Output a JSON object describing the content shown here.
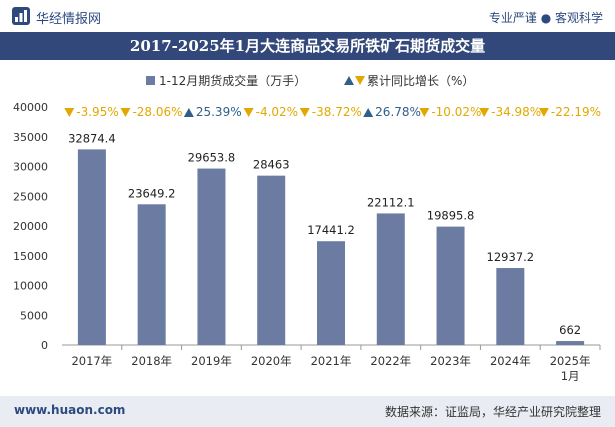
{
  "header": {
    "brand": "华经情报网",
    "tagline": "专业严谨 ● 客观科学"
  },
  "footer": {
    "website": "www.huaon.com",
    "source": "数据来源：证监局，华经产业研究院整理"
  },
  "colors": {
    "title_bg": "#32487a",
    "bar": "#6b7ba2",
    "growth_up": "#2f5f8a",
    "growth_down": "#e0a800"
  },
  "chart_data": {
    "type": "bar",
    "title": "2017-2025年1月大连商品交易所铁矿石期货成交量",
    "categories": [
      "2017年",
      "2018年",
      "2019年",
      "2020年",
      "2021年",
      "2022年",
      "2023年",
      "2024年",
      "2025年\n1月"
    ],
    "series": [
      {
        "name": "1-12月期货成交量（万手）",
        "values": [
          32874.4,
          23649.2,
          29653.8,
          28463,
          17441.2,
          22112.1,
          19895.8,
          12937.2,
          662
        ],
        "labels": [
          "32874.4",
          "23649.2",
          "29653.8",
          "28463",
          "17441.2",
          "22112.1",
          "19895.8",
          "12937.2",
          "662"
        ]
      },
      {
        "name": "累计同比增长（%）",
        "values": [
          -3.95,
          -28.06,
          25.39,
          -4.02,
          -38.72,
          26.78,
          -10.02,
          -34.98,
          -22.19
        ],
        "labels": [
          "-3.95%",
          "-28.06%",
          "25.39%",
          "-4.02%",
          "-38.72%",
          "26.78%",
          "-10.02%",
          "-34.98%",
          "-22.19%"
        ]
      }
    ],
    "ylim": [
      0,
      40000
    ],
    "yticks": [
      0,
      5000,
      10000,
      15000,
      20000,
      25000,
      30000,
      35000,
      40000
    ],
    "xlabel": "",
    "ylabel": "",
    "legend_position": "top"
  }
}
